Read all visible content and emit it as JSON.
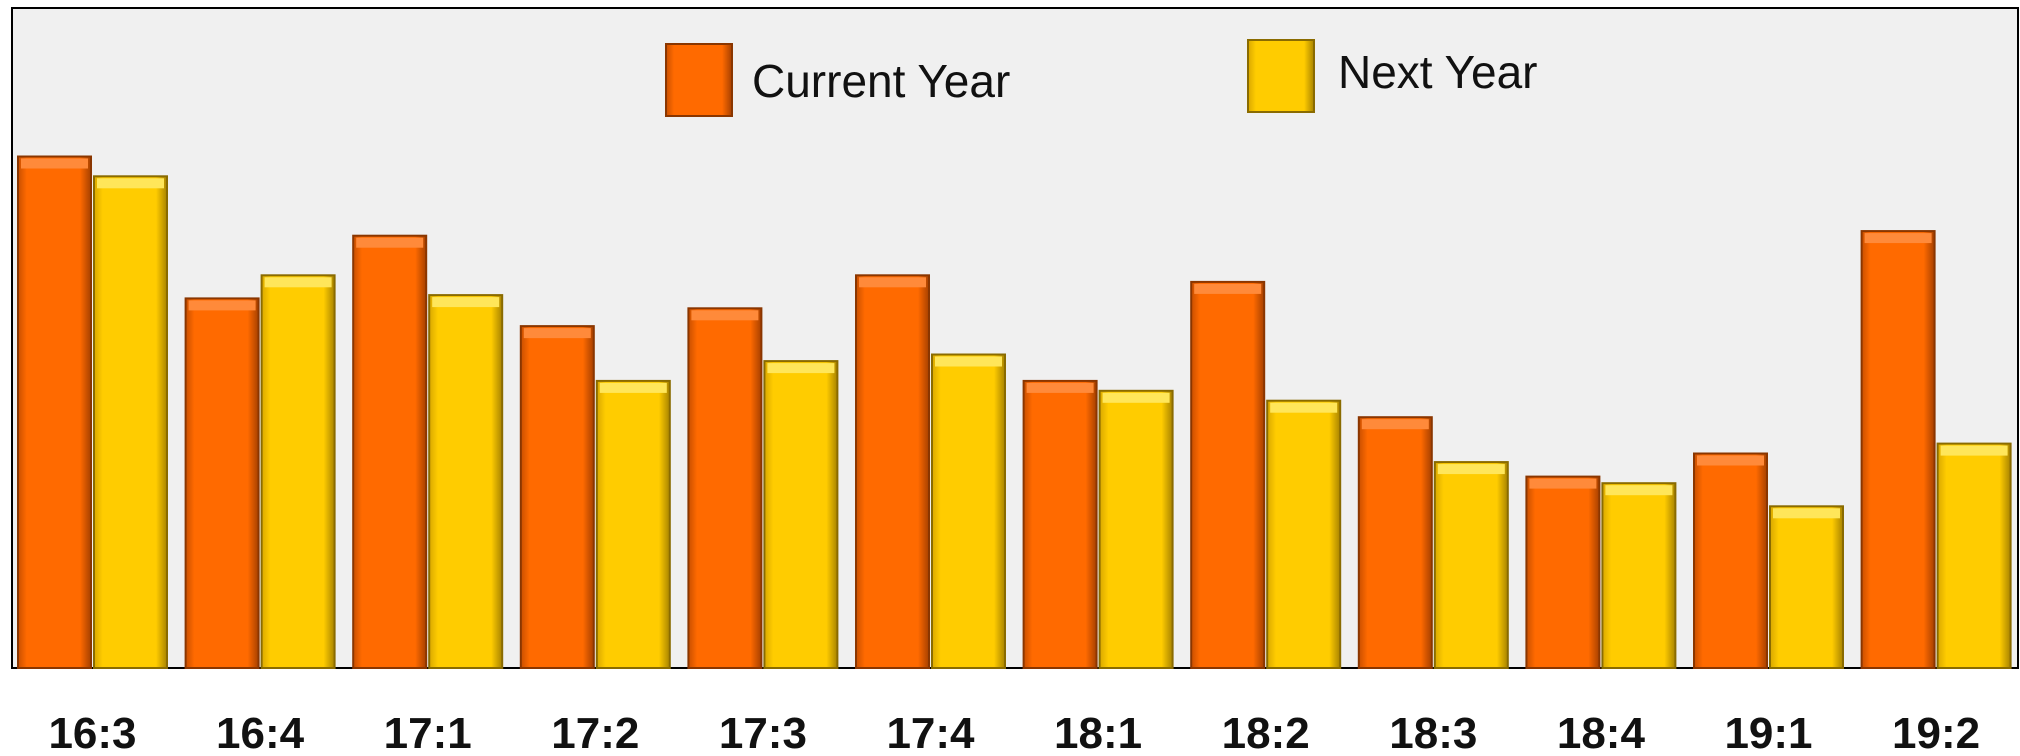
{
  "colors": {
    "plot_background": "#f0f0f0",
    "plot_border": "#000000",
    "current_year": "#ff6a00",
    "next_year": "#ffcc00"
  },
  "legend": [
    {
      "label": "Current Year",
      "swatch": "current_year"
    },
    {
      "label": "Next Year",
      "swatch": "next_year"
    }
  ],
  "chart_data": {
    "type": "bar",
    "title": "",
    "xlabel": "",
    "ylabel": "",
    "grid": false,
    "legend_position": "top-center",
    "categories": [
      "16:3",
      "16:4",
      "17:1",
      "17:2",
      "17:3",
      "17:4",
      "18:1",
      "18:2",
      "18:3",
      "18:4",
      "19:1",
      "19:2"
    ],
    "series": [
      {
        "name": "Current Year",
        "values": [
          0.775,
          0.56,
          0.655,
          0.518,
          0.545,
          0.595,
          0.435,
          0.585,
          0.38,
          0.29,
          0.325,
          0.662
        ]
      },
      {
        "name": "Next Year",
        "values": [
          0.745,
          0.595,
          0.565,
          0.435,
          0.465,
          0.475,
          0.42,
          0.405,
          0.312,
          0.28,
          0.245,
          0.34
        ]
      }
    ],
    "ylim": [
      0,
      1
    ]
  }
}
